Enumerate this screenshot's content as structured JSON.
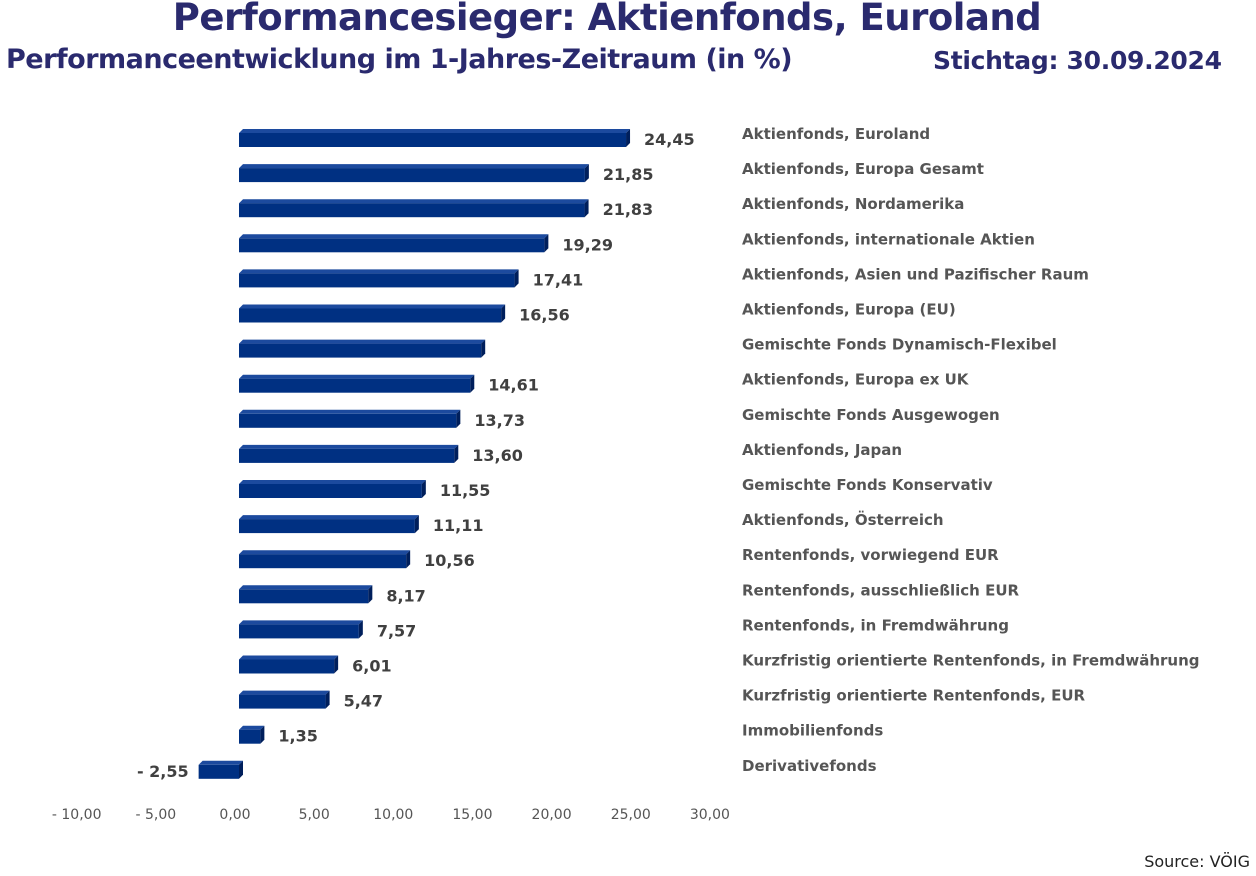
{
  "header": {
    "title": "Performancesieger: Aktienfonds, Euroland",
    "subtitle": "Performanceentwicklung im 1-Jahres-Zeitraum (in %)",
    "stichtag": "Stichtag: 30.09.2024"
  },
  "footer": {
    "source": "Source: VÖIG"
  },
  "colors": {
    "bar": "#003082",
    "bar_top": "#1c4a9e",
    "bar_side": "#001f5c",
    "title": "#2a2a6e"
  },
  "chart_data": {
    "type": "bar",
    "orientation": "horizontal",
    "title": "Performancesieger: Aktienfonds, Euroland",
    "subtitle": "Performanceentwicklung im 1-Jahres-Zeitraum (in %)",
    "xlabel": "",
    "ylabel": "",
    "xlim": [
      -10,
      30
    ],
    "xticks": [
      -10,
      -5,
      0,
      5,
      10,
      15,
      20,
      25,
      30
    ],
    "xtick_labels": [
      "- 10,00",
      "- 5,00",
      "0,00",
      "5,00",
      "10,00",
      "15,00",
      "20,00",
      "25,00",
      "30,00"
    ],
    "grid": false,
    "legend": "none",
    "categories": [
      "Aktienfonds, Euroland",
      "Aktienfonds, Europa Gesamt",
      "Aktienfonds, Nordamerika",
      "Aktienfonds, internationale Aktien",
      "Aktienfonds, Asien und Pazifischer Raum",
      "Aktienfonds, Europa (EU)",
      "Gemischte Fonds Dynamisch-Flexibel",
      "Aktienfonds, Europa ex UK",
      "Gemischte Fonds Ausgewogen",
      "Aktienfonds, Japan",
      "Gemischte Fonds Konservativ",
      "Aktienfonds, Österreich",
      "Rentenfonds, vorwiegend EUR",
      "Rentenfonds, ausschließlich EUR",
      "Rentenfonds, in Fremdwährung",
      "Kurzfristig orientierte Rentenfonds, in Fremdwährung",
      "Kurzfristig orientierte Rentenfonds,  EUR",
      "Immobilienfonds",
      "Derivativefonds"
    ],
    "values": [
      24.45,
      21.85,
      21.83,
      19.29,
      17.41,
      16.56,
      15.3,
      14.61,
      13.73,
      13.6,
      11.55,
      11.11,
      10.56,
      8.17,
      7.57,
      6.01,
      5.47,
      1.35,
      -2.55
    ],
    "value_labels": [
      "24,45",
      "21,85",
      "21,83",
      "19,29",
      "17,41",
      "16,56",
      "",
      "14,61",
      "13,73",
      "13,60",
      "11,55",
      "11,11",
      "10,56",
      "8,17",
      "7,57",
      "6,01",
      "5,47",
      "1,35",
      "- 2,55"
    ]
  }
}
